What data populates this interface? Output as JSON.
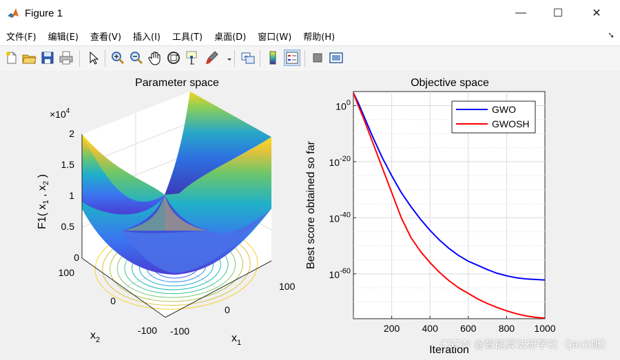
{
  "window": {
    "title": "Figure 1",
    "minimize": "—",
    "maximize": "☐",
    "close": "✕"
  },
  "menu": [
    "文件(F)",
    "编辑(E)",
    "查看(V)",
    "插入(I)",
    "工具(T)",
    "桌面(D)",
    "窗口(W)",
    "帮助(H)"
  ],
  "toolbar": {
    "icons": [
      "new-figure-icon",
      "open-file-icon",
      "save-icon",
      "print-icon",
      "pointer-icon",
      "zoom-in-icon",
      "zoom-out-icon",
      "pan-hand-icon",
      "rotate-3d-icon",
      "data-cursor-icon",
      "brush-icon",
      "link-plot-icon",
      "colorbar-icon",
      "legend-icon",
      "hide-plot-tools-icon",
      "show-plot-tools-icon"
    ]
  },
  "colors": {
    "gwo": "#0000ff",
    "gwosh": "#ff0000",
    "axes_bg": "#ffffff",
    "figure_bg": "#f0f0f0"
  },
  "chart_data": [
    {
      "type": "surface",
      "title": "Parameter space",
      "zlabel": "F1( x_1 , x_2 )",
      "xlabel": "x_1",
      "ylabel": "x_2",
      "z_exponent_label": "×10^4",
      "z_ticks": [
        "0",
        "0.5",
        "1",
        "1.5",
        "2"
      ],
      "x_ticks": [
        "-100",
        "0",
        "100"
      ],
      "y_ticks": [
        "-100",
        "0",
        "100"
      ],
      "xlim": [
        -100,
        100
      ],
      "ylim": [
        -100,
        100
      ],
      "zlim": [
        0,
        20000
      ],
      "function": "x1^2 + x2^2",
      "contour_levels": 11
    },
    {
      "type": "line",
      "title": "Objective space",
      "xlabel": "Iteration",
      "ylabel": "Best score obtained so far",
      "yscale": "log",
      "xlim": [
        0,
        1000
      ],
      "ylim_exponent": [
        -76,
        5
      ],
      "x_ticks": [
        "200",
        "400",
        "600",
        "800",
        "1000"
      ],
      "y_ticks": [
        "10^0",
        "10^-20",
        "10^-40",
        "10^-60"
      ],
      "legend_position": "top-right",
      "series": [
        {
          "name": "GWO",
          "color": "#0000ff",
          "x": [
            0,
            25,
            50,
            100,
            150,
            200,
            250,
            300,
            350,
            400,
            450,
            500,
            550,
            600,
            650,
            700,
            750,
            800,
            850,
            900,
            950,
            1000
          ],
          "log10_y": [
            4.5,
            1,
            -3,
            -11,
            -18.5,
            -25,
            -31,
            -36,
            -40.5,
            -44.5,
            -48,
            -51,
            -53.5,
            -55.5,
            -57,
            -58.5,
            -59.8,
            -60.7,
            -61.4,
            -61.8,
            -62,
            -62.2
          ]
        },
        {
          "name": "GWOSH",
          "color": "#ff0000",
          "x": [
            0,
            25,
            50,
            100,
            150,
            200,
            250,
            300,
            350,
            400,
            450,
            500,
            550,
            600,
            650,
            700,
            750,
            800,
            850,
            900,
            950,
            1000
          ],
          "log10_y": [
            4.5,
            0,
            -4,
            -13,
            -22,
            -31,
            -40,
            -47,
            -52,
            -56,
            -59.5,
            -62.5,
            -65,
            -67,
            -69,
            -70.6,
            -72,
            -73.2,
            -74.2,
            -75,
            -75.5,
            -75.8
          ]
        }
      ]
    }
  ],
  "watermark": "CSDN @智能算法研学社（Jack旭）"
}
